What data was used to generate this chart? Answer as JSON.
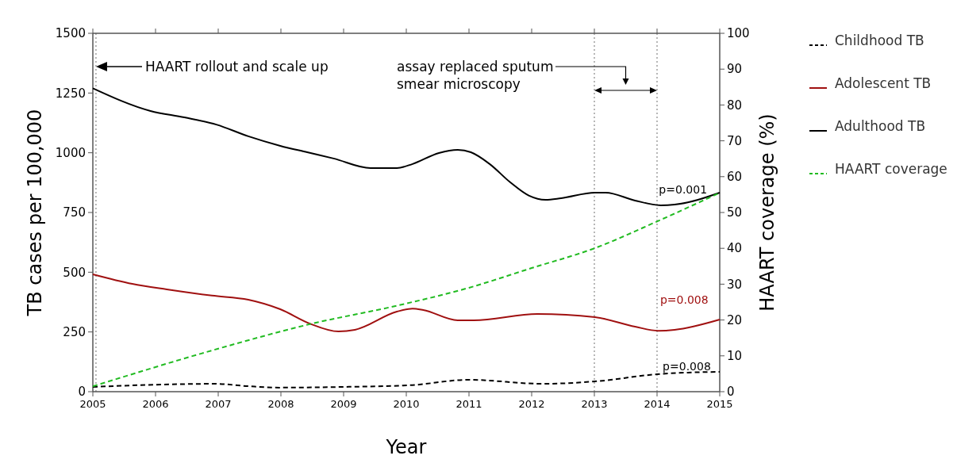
{
  "chart_data": {
    "type": "line",
    "xlabel": "Year",
    "ylabel": "TB cases per 100,000",
    "y2label": "HAART coverage (%)",
    "xlim": [
      2005,
      2015
    ],
    "xticks": [
      2005,
      2006,
      2007,
      2008,
      2009,
      2010,
      2011,
      2012,
      2013,
      2014,
      2015
    ],
    "ylim": [
      0,
      1500
    ],
    "yticks": [
      0,
      250,
      500,
      750,
      1000,
      1250,
      1500
    ],
    "y2lim": [
      0,
      100
    ],
    "y2ticks": [
      0,
      10,
      20,
      30,
      40,
      50,
      60,
      70,
      80,
      90,
      100
    ],
    "legend": "right",
    "grid": false,
    "marker": "none",
    "series": [
      {
        "name": "Childhood TB",
        "color": "#000000",
        "line_style": "dashed",
        "x": [
          2005,
          2006.1,
          2006.94,
          2007.48,
          2007.99,
          2009.0,
          2010.06,
          2011.0,
          2012.16,
          2013.01,
          2014.0,
          2014.49,
          2015
        ],
        "values": [
          20,
          30,
          33,
          23,
          17,
          20,
          27,
          50,
          33,
          43,
          73,
          80,
          83
        ]
      },
      {
        "name": "Adolescent TB",
        "color": "#a01010",
        "line_style": "solid",
        "x": [
          2005,
          2005.63,
          2006.18,
          2006.9,
          2007.48,
          2007.99,
          2008.46,
          2008.92,
          2009.18,
          2009.85,
          2010.1,
          2010.27,
          2010.82,
          2011.08,
          2012.09,
          2013.01,
          2013.65,
          2014.02,
          2014.28,
          2015
        ],
        "values": [
          491,
          451,
          428,
          402,
          385,
          345,
          285,
          252,
          259,
          335,
          348,
          342,
          299,
          299,
          325,
          312,
          272,
          255,
          259,
          302
        ]
      },
      {
        "name": "Adulthood TB",
        "color": "#000000",
        "line_style": "solid",
        "x": [
          2005,
          2005.92,
          2006.46,
          2006.97,
          2007.48,
          2007.99,
          2008.42,
          2008.84,
          2009.43,
          2009.85,
          2010.1,
          2010.52,
          2010.82,
          2011.03,
          2011.33,
          2011.66,
          2011.96,
          2012.22,
          2012.47,
          2013.01,
          2013.18,
          2013.65,
          2014.06,
          2014.28,
          2015
        ],
        "values": [
          1270,
          1175,
          1148,
          1118,
          1069,
          1029,
          1002,
          976,
          936,
          936,
          953,
          999,
          1012,
          1002,
          953,
          876,
          820,
          803,
          810,
          833,
          833,
          800,
          780,
          783,
          833
        ]
      },
      {
        "name": "HAART coverage",
        "color": "#22bb22",
        "line_style": "dashed",
        "axis": "y2",
        "x": [
          2005,
          2007,
          2008.5,
          2009.85,
          2011,
          2012,
          2013,
          2014,
          2015
        ],
        "values": [
          1.5,
          12,
          19,
          24,
          29,
          34.5,
          40,
          47.5,
          55.5
        ]
      }
    ],
    "ref_lines": [
      {
        "axis": "x",
        "value": 2005.05,
        "color": "#888888",
        "line_style": "dotted"
      },
      {
        "axis": "x",
        "value": 2013,
        "color": "#888888",
        "line_style": "dotted"
      },
      {
        "axis": "x",
        "value": 2014,
        "color": "#888888",
        "line_style": "dotted"
      }
    ],
    "annotations": [
      "HAART rollout and scale up",
      "assay replaced sputum smear microscopy",
      {
        "text": "p=0.001",
        "x": 2014.03,
        "y": 830
      },
      {
        "text": "p=0.008",
        "x": 2014.05,
        "y": 370
      },
      {
        "text": "p=0.008",
        "x": 2014.09,
        "y": 88
      }
    ]
  }
}
